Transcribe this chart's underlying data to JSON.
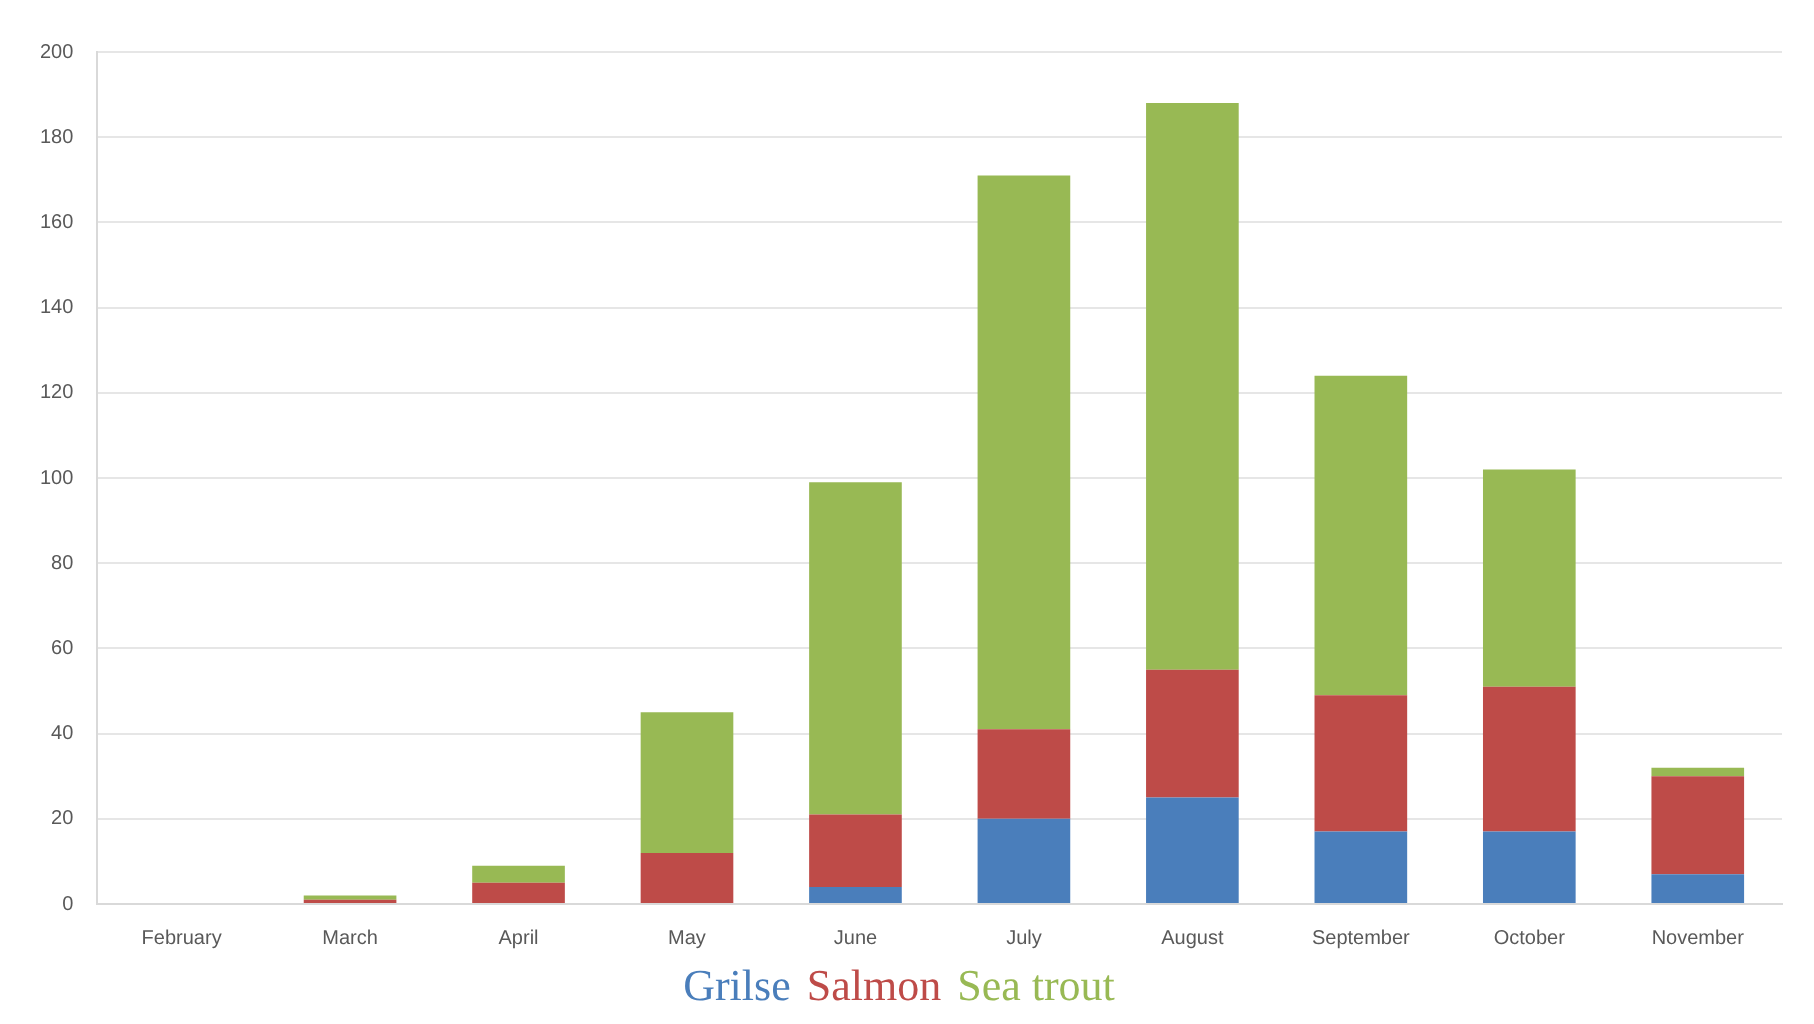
{
  "chart_data": {
    "type": "bar",
    "stacked": true,
    "categories": [
      "February",
      "March",
      "April",
      "May",
      "June",
      "July",
      "August",
      "September",
      "October",
      "November"
    ],
    "series": [
      {
        "name": "Grilse",
        "color": "#4a7ebb",
        "values": [
          0,
          0,
          0,
          0,
          4,
          20,
          25,
          17,
          17,
          7
        ]
      },
      {
        "name": "Salmon",
        "color": "#be4b48",
        "values": [
          0,
          1,
          5,
          12,
          17,
          21,
          30,
          32,
          34,
          23
        ]
      },
      {
        "name": "Sea trout",
        "color": "#98b954",
        "values": [
          0,
          1,
          4,
          33,
          78,
          130,
          133,
          75,
          51,
          2
        ]
      }
    ],
    "ylim": [
      0,
      200
    ],
    "yticks": [
      0,
      20,
      40,
      60,
      80,
      100,
      120,
      140,
      160,
      180,
      200
    ],
    "grid": "y",
    "legend": "bottom"
  }
}
